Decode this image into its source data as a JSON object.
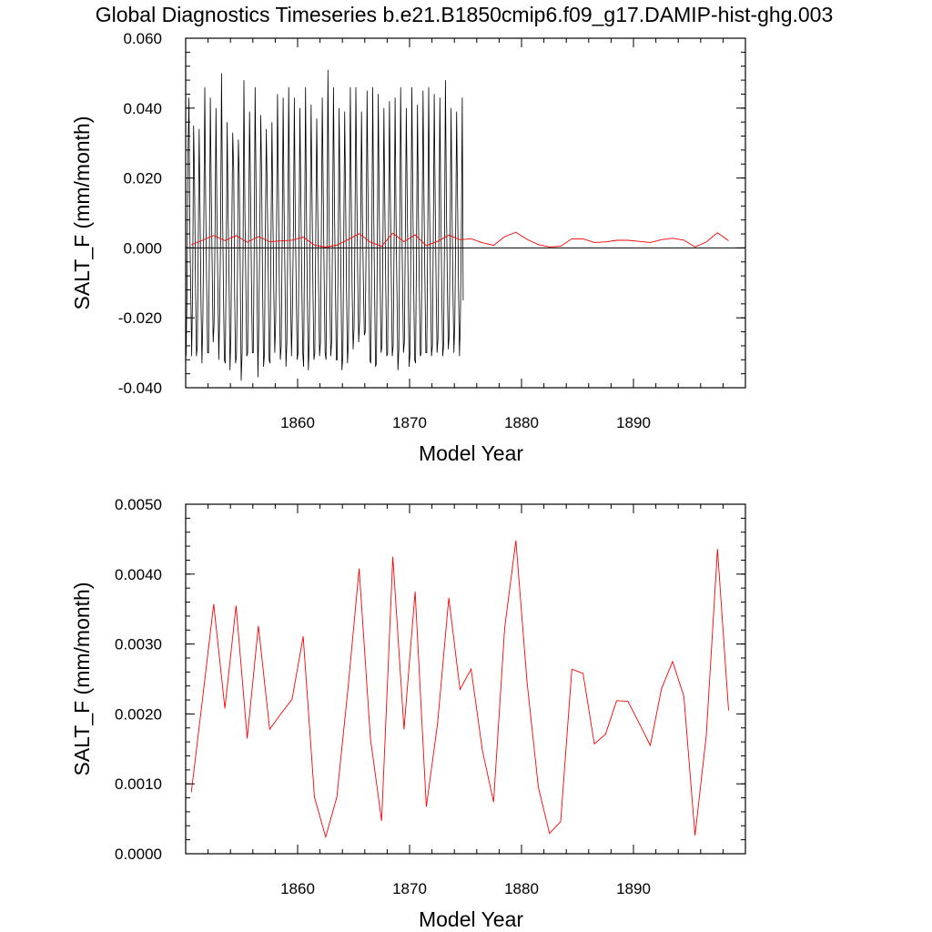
{
  "title": "Global Diagnostics Timeseries b.e21.B1850cmip6.f09_g17.DAMIP-hist-ghg.003",
  "colors": {
    "monthly": "#000000",
    "annual": "#ff0000",
    "zero_line": "#000000"
  },
  "chart_data": [
    {
      "type": "line",
      "ylabel": "SALT_F (mm/month)",
      "xlabel": "Model Year",
      "xlim": [
        1850,
        1900
      ],
      "ylim": [
        -0.04,
        0.06
      ],
      "xticks": [
        1860,
        1870,
        1880,
        1890
      ],
      "yticks": [
        -0.04,
        -0.02,
        0.0,
        0.02,
        0.04,
        0.06
      ],
      "ytick_labels": [
        "-0.040",
        "-0.020",
        "0.000",
        "0.020",
        "0.040",
        "0.060"
      ],
      "zero_line": true,
      "grid": false,
      "series": [
        {
          "kind": "monthly",
          "x_start": 1850.04,
          "x_step": 0.0833333,
          "values": [
            -0.031,
            -0.012,
            0.026,
            0.043,
            0.005,
            -0.013,
            -0.031,
            -0.01,
            0.035,
            0.02,
            -0.008,
            -0.031,
            -0.028,
            0.0,
            0.034,
            0.008,
            -0.017,
            -0.033,
            -0.02,
            0.01,
            0.046,
            0.013,
            -0.01,
            -0.03,
            -0.03,
            0.0,
            0.043,
            0.014,
            -0.007,
            -0.027,
            -0.022,
            0.006,
            0.04,
            0.011,
            -0.01,
            -0.032,
            -0.018,
            0.005,
            0.05,
            0.012,
            -0.012,
            -0.032,
            -0.033,
            -0.002,
            0.036,
            0.01,
            -0.007,
            -0.035,
            -0.025,
            0.005,
            0.033,
            0.022,
            -0.013,
            -0.033,
            -0.031,
            -0.008,
            0.031,
            0.02,
            -0.005,
            -0.038,
            -0.03,
            -0.003,
            0.048,
            0.01,
            -0.01,
            -0.031,
            -0.03,
            0.005,
            0.039,
            0.018,
            -0.008,
            -0.03,
            -0.03,
            0.0,
            0.046,
            0.016,
            -0.012,
            -0.037,
            -0.021,
            0.005,
            0.038,
            0.02,
            -0.011,
            -0.034,
            -0.03,
            0.006,
            0.034,
            0.014,
            -0.007,
            -0.032,
            -0.033,
            0.004,
            0.036,
            0.01,
            -0.012,
            -0.03,
            -0.021,
            0.007,
            0.044,
            0.014,
            -0.012,
            -0.032,
            -0.028,
            0.004,
            0.043,
            0.012,
            -0.008,
            -0.034,
            -0.027,
            0.003,
            0.046,
            0.011,
            -0.014,
            -0.031,
            -0.018,
            0.006,
            0.043,
            0.009,
            -0.01,
            -0.032,
            -0.03,
            0.0,
            0.04,
            0.013,
            -0.01,
            -0.03,
            -0.034,
            0.005,
            0.046,
            0.01,
            -0.015,
            -0.035,
            -0.027,
            0.005,
            0.041,
            0.013,
            -0.013,
            -0.032,
            -0.03,
            0.006,
            0.037,
            0.013,
            -0.01,
            -0.031,
            -0.027,
            0.005,
            0.043,
            0.015,
            -0.01,
            -0.03,
            -0.032,
            0.003,
            0.051,
            0.016,
            -0.012,
            -0.031,
            -0.027,
            0.007,
            0.046,
            0.012,
            -0.01,
            -0.032,
            -0.032,
            0.002,
            0.04,
            0.013,
            -0.01,
            -0.035,
            -0.031,
            0.003,
            0.039,
            0.012,
            -0.014,
            -0.033,
            -0.027,
            0.005,
            0.046,
            0.016,
            -0.012,
            -0.029,
            -0.023,
            0.004,
            0.046,
            0.015,
            -0.01,
            -0.027,
            -0.021,
            0.004,
            0.039,
            0.01,
            -0.009,
            -0.025,
            -0.024,
            0.002,
            0.045,
            0.013,
            -0.008,
            -0.032,
            -0.033,
            0.001,
            0.046,
            0.013,
            -0.011,
            -0.034,
            -0.033,
            0.002,
            0.044,
            0.01,
            -0.01,
            -0.03,
            -0.028,
            0.004,
            0.04,
            0.012,
            -0.01,
            -0.031,
            -0.03,
            0.006,
            0.042,
            0.012,
            -0.01,
            -0.031,
            -0.028,
            0.004,
            0.043,
            0.01,
            -0.012,
            -0.035,
            -0.029,
            0.004,
            0.046,
            0.012,
            -0.01,
            -0.03,
            -0.027,
            0.005,
            0.04,
            0.014,
            -0.01,
            -0.034,
            -0.03,
            0.005,
            0.046,
            0.014,
            -0.012,
            -0.032,
            -0.033,
            0.003,
            0.041,
            0.01,
            -0.011,
            -0.031,
            -0.03,
            0.004,
            0.045,
            0.013,
            -0.01,
            -0.03,
            -0.03,
            0.005,
            0.046,
            0.011,
            -0.01,
            -0.031,
            -0.028,
            0.004,
            0.044,
            0.012,
            -0.011,
            -0.03,
            -0.026,
            0.005,
            0.043,
            0.012,
            -0.01,
            -0.031,
            -0.028,
            0.004,
            0.048,
            0.012,
            -0.01,
            -0.029,
            -0.025,
            0.005,
            0.04,
            0.012,
            -0.011,
            -0.03,
            -0.022,
            0.006,
            0.039,
            0.012,
            -0.012,
            -0.031,
            -0.021,
            0.005,
            0.043,
            -0.015
          ]
        },
        {
          "kind": "annual",
          "name": "",
          "x": [
            1850.5,
            1851.5,
            1852.5,
            1853.5,
            1854.5,
            1855.5,
            1856.5,
            1857.5,
            1858.5,
            1859.5,
            1860.5,
            1861.5,
            1862.5,
            1863.5,
            1864.5,
            1865.5,
            1866.5,
            1867.5,
            1868.5,
            1869.5,
            1870.5,
            1871.5,
            1872.5,
            1873.5,
            1874.5,
            1875.5,
            1876.5,
            1877.5,
            1878.5,
            1879.5,
            1880.5,
            1881.5,
            1882.5,
            1883.5,
            1884.5,
            1885.5,
            1886.5,
            1887.5,
            1888.5,
            1889.5,
            1890.5,
            1891.5,
            1892.5,
            1893.5,
            1894.5,
            1895.5,
            1896.5,
            1897.5,
            1898.5
          ],
          "values": [
            0.00088,
            0.0022,
            0.00357,
            0.00208,
            0.00355,
            0.00165,
            0.00326,
            0.00178,
            0.002,
            0.00221,
            0.00311,
            0.00081,
            0.00024,
            0.00081,
            0.00237,
            0.00408,
            0.00165,
            0.00047,
            0.00425,
            0.00178,
            0.00375,
            0.00067,
            0.00187,
            0.00366,
            0.00235,
            0.00264,
            0.00148,
            0.00074,
            0.00323,
            0.00448,
            0.00245,
            0.00095,
            0.00029,
            0.00046,
            0.00264,
            0.00258,
            0.00157,
            0.00171,
            0.00219,
            0.00218,
            0.00187,
            0.00155,
            0.00236,
            0.00275,
            0.00225,
            0.00026,
            0.00169,
            0.00436,
            0.00205
          ]
        }
      ]
    },
    {
      "type": "line",
      "ylabel": "SALT_F (mm/month)",
      "xlabel": "Model Year",
      "xlim": [
        1850,
        1900
      ],
      "ylim": [
        0.0,
        0.005
      ],
      "xticks": [
        1860,
        1870,
        1880,
        1890
      ],
      "yticks": [
        0.0,
        0.001,
        0.002,
        0.003,
        0.004,
        0.005
      ],
      "ytick_labels": [
        "0.0000",
        "0.0010",
        "0.0020",
        "0.0030",
        "0.0040",
        "0.0050"
      ],
      "zero_line": false,
      "grid": false,
      "series": [
        {
          "kind": "annual",
          "name": "",
          "x": [
            1850.5,
            1851.5,
            1852.5,
            1853.5,
            1854.5,
            1855.5,
            1856.5,
            1857.5,
            1858.5,
            1859.5,
            1860.5,
            1861.5,
            1862.5,
            1863.5,
            1864.5,
            1865.5,
            1866.5,
            1867.5,
            1868.5,
            1869.5,
            1870.5,
            1871.5,
            1872.5,
            1873.5,
            1874.5,
            1875.5,
            1876.5,
            1877.5,
            1878.5,
            1879.5,
            1880.5,
            1881.5,
            1882.5,
            1883.5,
            1884.5,
            1885.5,
            1886.5,
            1887.5,
            1888.5,
            1889.5,
            1890.5,
            1891.5,
            1892.5,
            1893.5,
            1894.5,
            1895.5,
            1896.5,
            1897.5,
            1898.5
          ],
          "values": [
            0.00088,
            0.0022,
            0.00357,
            0.00208,
            0.00355,
            0.00165,
            0.00326,
            0.00178,
            0.002,
            0.00221,
            0.00311,
            0.00081,
            0.00024,
            0.00081,
            0.00237,
            0.00408,
            0.00165,
            0.00047,
            0.00425,
            0.00178,
            0.00375,
            0.00067,
            0.00187,
            0.00366,
            0.00235,
            0.00264,
            0.00148,
            0.00074,
            0.00323,
            0.00448,
            0.00245,
            0.00095,
            0.00029,
            0.00046,
            0.00264,
            0.00258,
            0.00157,
            0.00171,
            0.00219,
            0.00218,
            0.00187,
            0.00155,
            0.00236,
            0.00275,
            0.00225,
            0.00026,
            0.00169,
            0.00436,
            0.00205
          ]
        }
      ]
    }
  ]
}
